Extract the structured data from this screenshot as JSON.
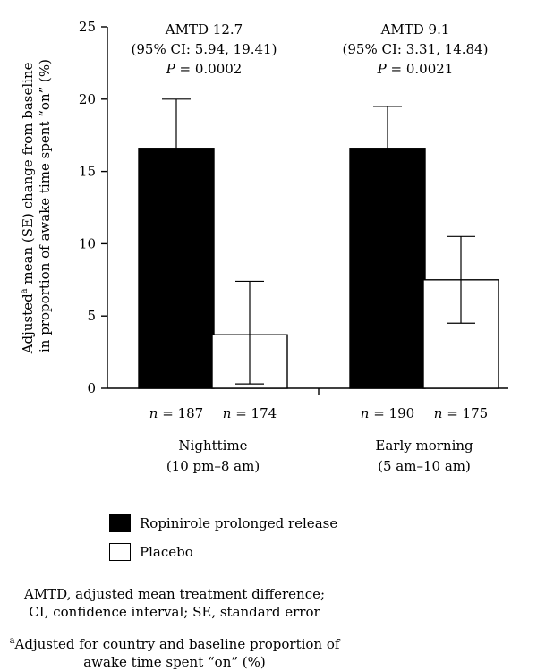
{
  "chart_data": {
    "type": "bar",
    "ylabel_line1_pre": "Adjusted",
    "ylabel_sup": "a",
    "ylabel_line1_post": " mean (SE) change from baseline",
    "ylabel_line2": "in proportion of awake time spent “on” (%)",
    "ylim": [
      0,
      25
    ],
    "yticks": [
      0,
      5,
      10,
      15,
      20,
      25
    ],
    "groups": [
      {
        "label_line1": "Nighttime",
        "label_line2": "(10 pm–8 am)",
        "annotation_line1": "AMTD 12.7",
        "annotation_line2": "(95% CI: 5.94, 19.41)",
        "annotation_p": "P",
        "annotation_p_value": " = 0.0002",
        "bars": [
          {
            "series": "Ropinirole prolonged release",
            "value": 16.6,
            "err_low": 13.1,
            "err_high": 20.0,
            "n_label": "n",
            "n_value": " = 187"
          },
          {
            "series": "Placebo",
            "value": 3.7,
            "err_low": 0.3,
            "err_high": 7.4,
            "n_label": "n",
            "n_value": " = 174"
          }
        ]
      },
      {
        "label_line1": "Early morning",
        "label_line2": "(5 am–10 am)",
        "annotation_line1": "AMTD 9.1",
        "annotation_line2": "(95% CI: 3.31, 14.84)",
        "annotation_p": "P",
        "annotation_p_value": " = 0.0021",
        "bars": [
          {
            "series": "Ropinirole prolonged release",
            "value": 16.6,
            "err_low": 13.7,
            "err_high": 19.5,
            "n_label": "n",
            "n_value": " = 190"
          },
          {
            "series": "Placebo",
            "value": 7.5,
            "err_low": 4.5,
            "err_high": 10.5,
            "n_label": "n",
            "n_value": " = 175"
          }
        ]
      }
    ],
    "series": [
      {
        "name": "Ropinirole prolonged release",
        "color": "#000000"
      },
      {
        "name": "Placebo",
        "color": "#ffffff"
      }
    ],
    "legend_position": "bottom-left"
  },
  "legend": {
    "ropinirole": "Ropinirole prolonged release",
    "placebo": "Placebo"
  },
  "notes": {
    "abbrev_line1": "AMTD, adjusted mean treatment difference;",
    "abbrev_line2": "CI, confidence interval; SE, standard error",
    "footnote_sup": "a",
    "footnote_line1": "Adjusted for country and baseline proportion of",
    "footnote_line2": "awake time spent “on” (%)"
  }
}
